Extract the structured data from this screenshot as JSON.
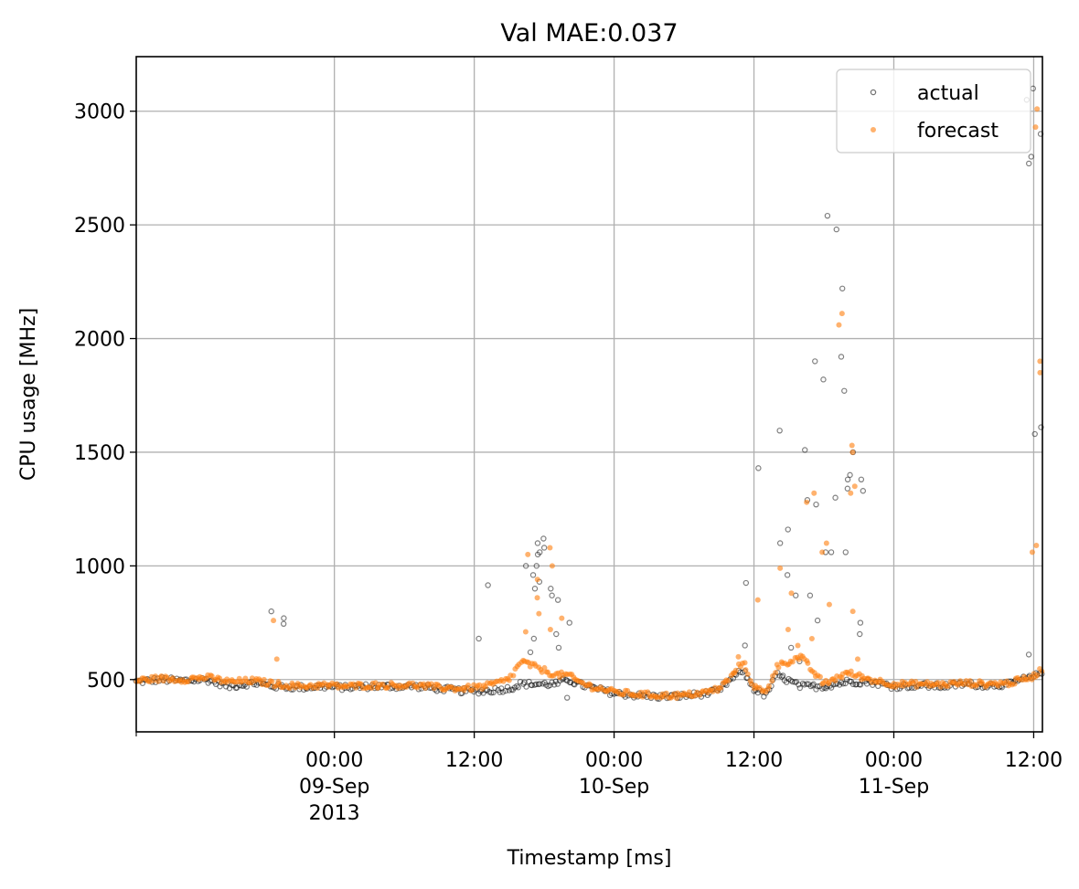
{
  "chart_data": {
    "type": "scatter",
    "title": "Val MAE:0.037",
    "xlabel": "Timestamp [ms]",
    "ylabel": "CPU usage [MHz]",
    "xlim": [
      "2013-09-08T07:00",
      "2013-09-11T12:45"
    ],
    "ylim": [
      270,
      3240
    ],
    "grid": true,
    "legend_position": "top-right",
    "yticks": [
      {
        "value": 500,
        "label": "500"
      },
      {
        "value": 1000,
        "label": "1000"
      },
      {
        "value": 1500,
        "label": "1500"
      },
      {
        "value": 2000,
        "label": "2000"
      },
      {
        "value": 2500,
        "label": "2500"
      },
      {
        "value": 3000,
        "label": "3000"
      }
    ],
    "xticks": [
      {
        "value": "2013-09-09T00:00",
        "lines": [
          "00:00",
          "09-Sep",
          "2013"
        ]
      },
      {
        "value": "2013-09-09T12:00",
        "lines": [
          "12:00"
        ]
      },
      {
        "value": "2013-09-10T00:00",
        "lines": [
          "00:00",
          "10-Sep"
        ]
      },
      {
        "value": "2013-09-10T12:00",
        "lines": [
          "12:00"
        ]
      },
      {
        "value": "2013-09-11T00:00",
        "lines": [
          "00:00",
          "11-Sep"
        ]
      },
      {
        "value": "2013-09-11T12:00",
        "lines": [
          "12:00"
        ]
      }
    ],
    "series": [
      {
        "name": "actual",
        "color": "#000000",
        "marker": "hollow-circle",
        "baseline": [
          [
            "2013-09-08T07:00",
            490
          ],
          [
            "2013-09-08T09:00",
            500
          ],
          [
            "2013-09-08T11:00",
            495
          ],
          [
            "2013-09-08T13:00",
            500
          ],
          [
            "2013-09-08T15:00",
            470
          ],
          [
            "2013-09-08T17:00",
            485
          ],
          [
            "2013-09-08T19:00",
            470
          ],
          [
            "2013-09-08T21:00",
            465
          ],
          [
            "2013-09-08T23:00",
            470
          ],
          [
            "2013-09-09T01:00",
            465
          ],
          [
            "2013-09-09T03:00",
            470
          ],
          [
            "2013-09-09T05:00",
            470
          ],
          [
            "2013-09-09T07:00",
            470
          ],
          [
            "2013-09-09T09:00",
            460
          ],
          [
            "2013-09-09T11:00",
            450
          ],
          [
            "2013-09-09T13:00",
            450
          ],
          [
            "2013-09-09T15:00",
            460
          ],
          [
            "2013-09-09T16:00",
            480
          ],
          [
            "2013-09-09T19:00",
            480
          ],
          [
            "2013-09-09T20:00",
            500
          ],
          [
            "2013-09-09T21:00",
            480
          ],
          [
            "2013-09-09T22:00",
            465
          ],
          [
            "2013-09-10T00:00",
            440
          ],
          [
            "2013-09-10T02:00",
            430
          ],
          [
            "2013-09-10T04:00",
            425
          ],
          [
            "2013-09-10T06:00",
            428
          ],
          [
            "2013-09-10T08:00",
            440
          ],
          [
            "2013-09-10T09:00",
            450
          ],
          [
            "2013-09-10T10:00",
            500
          ],
          [
            "2013-09-10T11:00",
            540
          ],
          [
            "2013-09-10T12:00",
            460
          ],
          [
            "2013-09-10T13:00",
            430
          ],
          [
            "2013-09-10T14:00",
            520
          ],
          [
            "2013-09-10T16:00",
            470
          ],
          [
            "2013-09-10T18:00",
            470
          ],
          [
            "2013-09-10T20:00",
            490
          ],
          [
            "2013-09-10T22:00",
            490
          ],
          [
            "2013-09-11T00:00",
            470
          ],
          [
            "2013-09-11T02:00",
            475
          ],
          [
            "2013-09-11T04:00",
            470
          ],
          [
            "2013-09-11T06:00",
            480
          ],
          [
            "2013-09-11T08:00",
            475
          ],
          [
            "2013-09-11T10:00",
            480
          ],
          [
            "2013-09-11T11:00",
            500
          ],
          [
            "2013-09-11T12:00",
            510
          ],
          [
            "2013-09-11T12:45",
            540
          ]
        ],
        "points": [
          [
            "2013-09-08T19:00",
            800
          ],
          [
            "2013-09-08T19:00",
            770
          ],
          [
            "2013-09-08T19:00",
            745
          ],
          [
            "2013-09-09T13:00",
            915
          ],
          [
            "2013-09-09T13:00",
            680
          ],
          [
            "2013-09-09T17:00",
            1100
          ],
          [
            "2013-09-09T17:00",
            1060
          ],
          [
            "2013-09-09T17:00",
            1000
          ],
          [
            "2013-09-09T17:00",
            960
          ],
          [
            "2013-09-09T17:00",
            900
          ],
          [
            "2013-09-09T17:00",
            680
          ],
          [
            "2013-09-09T17:00",
            620
          ],
          [
            "2013-09-09T18:00",
            1120
          ],
          [
            "2013-09-09T18:00",
            1080
          ],
          [
            "2013-09-09T18:00",
            1050
          ],
          [
            "2013-09-09T18:00",
            1000
          ],
          [
            "2013-09-09T18:00",
            930
          ],
          [
            "2013-09-09T18:00",
            870
          ],
          [
            "2013-09-09T19:00",
            900
          ],
          [
            "2013-09-09T19:00",
            850
          ],
          [
            "2013-09-09T19:00",
            700
          ],
          [
            "2013-09-09T19:00",
            640
          ],
          [
            "2013-09-09T20:00",
            750
          ],
          [
            "2013-09-09T20:00",
            420
          ],
          [
            "2013-09-10T11:00",
            925
          ],
          [
            "2013-09-10T11:00",
            650
          ],
          [
            "2013-09-10T13:00",
            1430
          ],
          [
            "2013-09-10T14:00",
            1595
          ],
          [
            "2013-09-10T14:00",
            1100
          ],
          [
            "2013-09-10T15:00",
            1160
          ],
          [
            "2013-09-10T15:00",
            960
          ],
          [
            "2013-09-10T15:00",
            870
          ],
          [
            "2013-09-10T15:00",
            640
          ],
          [
            "2013-09-10T16:00",
            580
          ],
          [
            "2013-09-10T17:00",
            1900
          ],
          [
            "2013-09-10T17:00",
            1510
          ],
          [
            "2013-09-10T17:00",
            1290
          ],
          [
            "2013-09-10T17:00",
            870
          ],
          [
            "2013-09-10T17:00",
            760
          ],
          [
            "2013-09-10T18:00",
            1820
          ],
          [
            "2013-09-10T18:00",
            1270
          ],
          [
            "2013-09-10T18:00",
            1060
          ],
          [
            "2013-09-10T19:00",
            2540
          ],
          [
            "2013-09-10T19:00",
            2480
          ],
          [
            "2013-09-10T19:00",
            2220
          ],
          [
            "2013-09-10T19:00",
            1920
          ],
          [
            "2013-09-10T19:00",
            1300
          ],
          [
            "2013-09-10T19:00",
            1060
          ],
          [
            "2013-09-10T20:00",
            1770
          ],
          [
            "2013-09-10T20:00",
            1500
          ],
          [
            "2013-09-10T20:00",
            1400
          ],
          [
            "2013-09-10T20:00",
            1380
          ],
          [
            "2013-09-10T20:00",
            1340
          ],
          [
            "2013-09-10T20:00",
            1060
          ],
          [
            "2013-09-10T21:00",
            1380
          ],
          [
            "2013-09-10T21:00",
            1330
          ],
          [
            "2013-09-10T21:00",
            750
          ],
          [
            "2013-09-10T21:00",
            700
          ],
          [
            "2013-09-11T12:00",
            3100
          ],
          [
            "2013-09-11T12:00",
            3050
          ],
          [
            "2013-09-11T12:00",
            2900
          ],
          [
            "2013-09-11T12:00",
            2800
          ],
          [
            "2013-09-11T12:00",
            2770
          ],
          [
            "2013-09-11T12:00",
            1610
          ],
          [
            "2013-09-11T12:00",
            1580
          ],
          [
            "2013-09-11T12:00",
            610
          ]
        ]
      },
      {
        "name": "forecast",
        "color": "#ff7f0e",
        "marker": "filled-circle",
        "baseline": [
          [
            "2013-09-08T07:00",
            495
          ],
          [
            "2013-09-08T09:00",
            505
          ],
          [
            "2013-09-08T11:00",
            500
          ],
          [
            "2013-09-08T13:00",
            510
          ],
          [
            "2013-09-08T15:00",
            490
          ],
          [
            "2013-09-08T17:00",
            495
          ],
          [
            "2013-09-08T19:00",
            480
          ],
          [
            "2013-09-08T21:00",
            470
          ],
          [
            "2013-09-08T23:00",
            475
          ],
          [
            "2013-09-09T01:00",
            470
          ],
          [
            "2013-09-09T03:00",
            475
          ],
          [
            "2013-09-09T05:00",
            475
          ],
          [
            "2013-09-09T07:00",
            475
          ],
          [
            "2013-09-09T09:00",
            465
          ],
          [
            "2013-09-09T11:00",
            460
          ],
          [
            "2013-09-09T13:00",
            470
          ],
          [
            "2013-09-09T15:00",
            500
          ],
          [
            "2013-09-09T16:00",
            580
          ],
          [
            "2013-09-09T19:00",
            520
          ],
          [
            "2013-09-09T20:00",
            520
          ],
          [
            "2013-09-09T21:00",
            490
          ],
          [
            "2013-09-09T22:00",
            470
          ],
          [
            "2013-09-10T00:00",
            445
          ],
          [
            "2013-09-10T02:00",
            435
          ],
          [
            "2013-09-10T04:00",
            430
          ],
          [
            "2013-09-10T06:00",
            430
          ],
          [
            "2013-09-10T08:00",
            445
          ],
          [
            "2013-09-10T09:00",
            460
          ],
          [
            "2013-09-10T10:00",
            510
          ],
          [
            "2013-09-10T11:00",
            580
          ],
          [
            "2013-09-10T12:00",
            470
          ],
          [
            "2013-09-10T13:00",
            440
          ],
          [
            "2013-09-10T14:00",
            560
          ],
          [
            "2013-09-10T16:00",
            600
          ],
          [
            "2013-09-10T18:00",
            480
          ],
          [
            "2013-09-10T20:00",
            530
          ],
          [
            "2013-09-10T22:00",
            500
          ],
          [
            "2013-09-11T00:00",
            480
          ],
          [
            "2013-09-11T02:00",
            480
          ],
          [
            "2013-09-11T04:00",
            478
          ],
          [
            "2013-09-11T06:00",
            485
          ],
          [
            "2013-09-11T08:00",
            480
          ],
          [
            "2013-09-11T10:00",
            485
          ],
          [
            "2013-09-11T11:00",
            500
          ],
          [
            "2013-09-11T12:00",
            515
          ],
          [
            "2013-09-11T12:45",
            550
          ]
        ],
        "points": [
          [
            "2013-09-08T19:00",
            760
          ],
          [
            "2013-09-08T19:00",
            590
          ],
          [
            "2013-09-09T17:00",
            1050
          ],
          [
            "2013-09-09T17:00",
            790
          ],
          [
            "2013-09-09T17:00",
            710
          ],
          [
            "2013-09-09T18:00",
            1080
          ],
          [
            "2013-09-09T18:00",
            1000
          ],
          [
            "2013-09-09T18:00",
            940
          ],
          [
            "2013-09-09T18:00",
            860
          ],
          [
            "2013-09-09T19:00",
            770
          ],
          [
            "2013-09-09T19:00",
            720
          ],
          [
            "2013-09-10T11:00",
            600
          ],
          [
            "2013-09-10T13:00",
            850
          ],
          [
            "2013-09-10T14:00",
            990
          ],
          [
            "2013-09-10T15:00",
            880
          ],
          [
            "2013-09-10T15:00",
            720
          ],
          [
            "2013-09-10T16:00",
            650
          ],
          [
            "2013-09-10T17:00",
            1320
          ],
          [
            "2013-09-10T17:00",
            1280
          ],
          [
            "2013-09-10T17:00",
            680
          ],
          [
            "2013-09-10T18:00",
            1100
          ],
          [
            "2013-09-10T18:00",
            1060
          ],
          [
            "2013-09-10T19:00",
            2110
          ],
          [
            "2013-09-10T19:00",
            2060
          ],
          [
            "2013-09-10T19:00",
            830
          ],
          [
            "2013-09-10T20:00",
            1530
          ],
          [
            "2013-09-10T20:00",
            1500
          ],
          [
            "2013-09-10T20:00",
            1350
          ],
          [
            "2013-09-10T21:00",
            1320
          ],
          [
            "2013-09-10T21:00",
            800
          ],
          [
            "2013-09-10T21:00",
            590
          ],
          [
            "2013-09-11T12:00",
            3010
          ],
          [
            "2013-09-11T12:00",
            2930
          ],
          [
            "2013-09-11T12:00",
            1900
          ],
          [
            "2013-09-11T12:00",
            1850
          ],
          [
            "2013-09-11T12:00",
            1090
          ],
          [
            "2013-09-11T12:00",
            1060
          ]
        ]
      }
    ]
  }
}
